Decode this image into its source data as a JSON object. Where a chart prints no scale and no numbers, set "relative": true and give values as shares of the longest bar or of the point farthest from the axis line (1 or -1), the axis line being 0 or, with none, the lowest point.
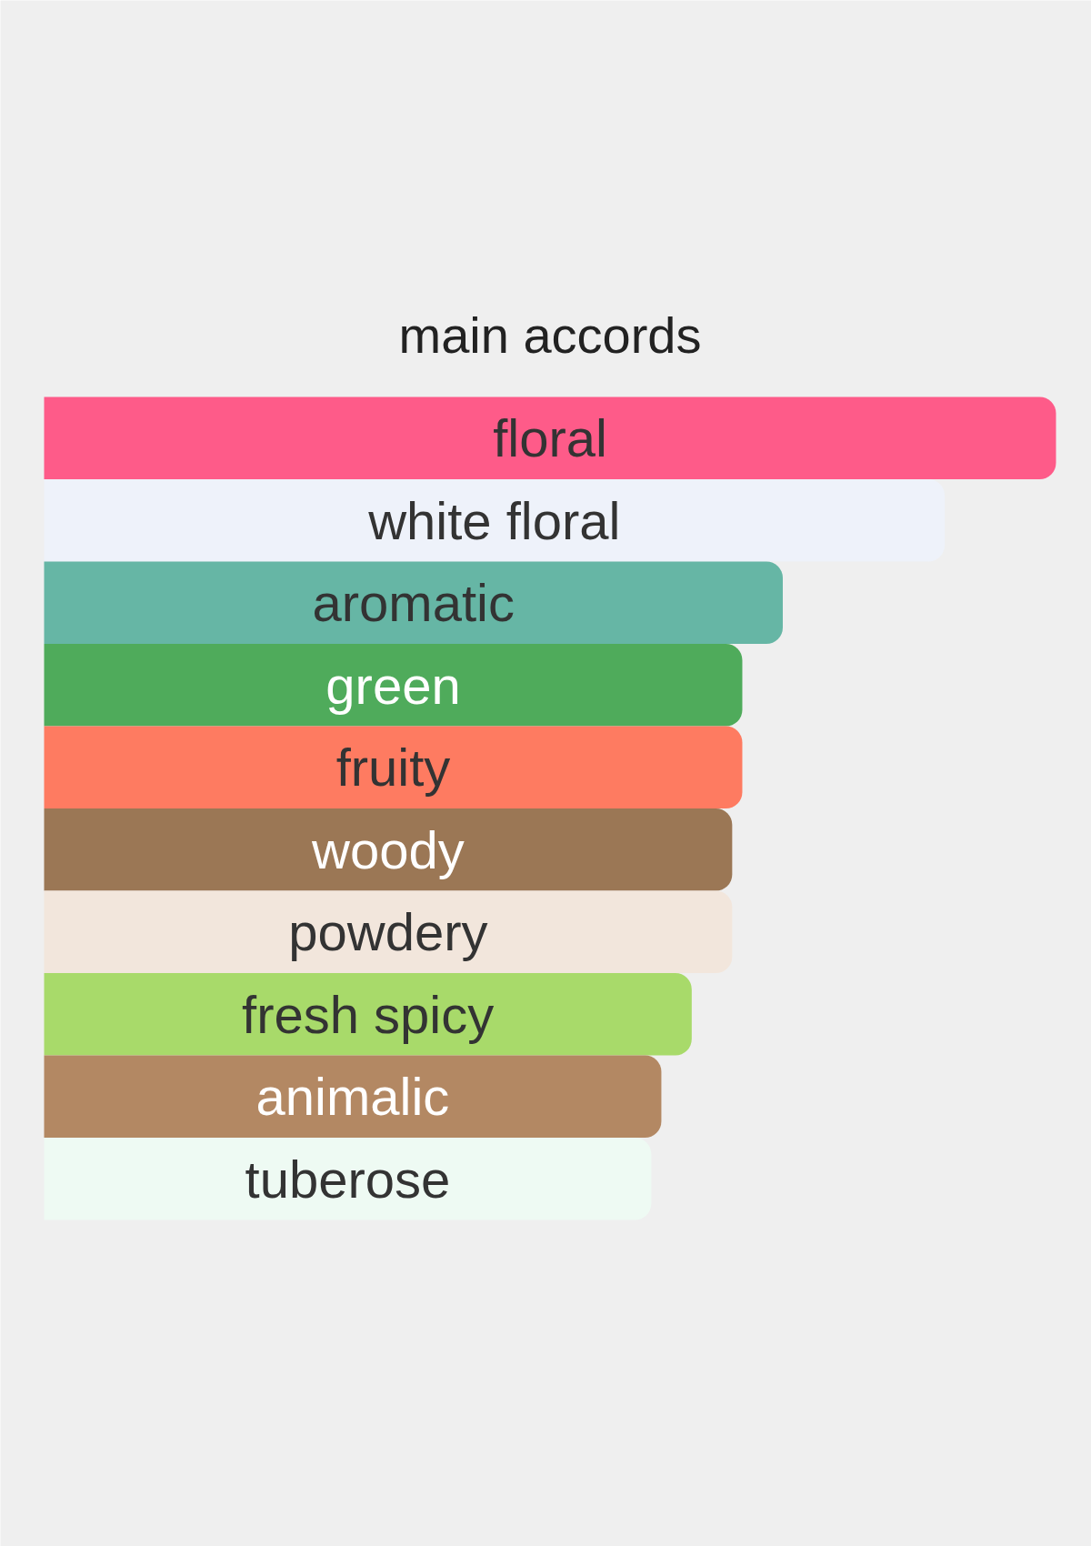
{
  "chart_data": {
    "type": "bar",
    "title": "main accords",
    "orientation": "horizontal",
    "relative": true,
    "categories": [
      "floral",
      "white floral",
      "aromatic",
      "green",
      "fruity",
      "woody",
      "powdery",
      "fresh spicy",
      "animalic",
      "tuberose"
    ],
    "values": [
      1,
      0.89,
      0.73,
      0.69,
      0.69,
      0.68,
      0.68,
      0.64,
      0.61,
      0.6
    ],
    "colors": [
      "#fe5b89",
      "#eef2fa",
      "#66b6a5",
      "#4fab5b",
      "#fe7b61",
      "#9b7755",
      "#f2e6dc",
      "#a8da6a",
      "#b38863",
      "#eefaf3"
    ]
  }
}
